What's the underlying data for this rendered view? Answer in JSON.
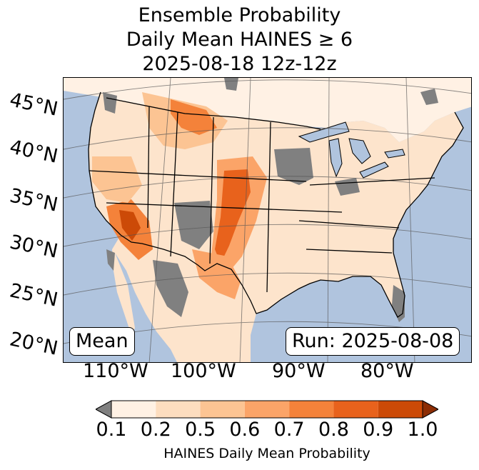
{
  "title": {
    "line1": "Ensemble Probability",
    "line2": "Daily Mean HAINES ≥ 6",
    "line3": "2025-08-18 12z-12z"
  },
  "latitude_labels": [
    "45°N",
    "40°N",
    "35°N",
    "30°N",
    "25°N",
    "20°N"
  ],
  "longitude_labels": [
    "110°W",
    "100°W",
    "90°W",
    "80°W"
  ],
  "badges": {
    "left": "Mean",
    "right": "Run: 2025-08-08"
  },
  "colorbar": {
    "ticks": [
      "0.1",
      "0.2",
      "0.5",
      "0.6",
      "0.7",
      "0.8",
      "0.9",
      "1.0"
    ],
    "label": "HAINES Daily Mean Probability",
    "colors": [
      "#fff1e4",
      "#fdddbf",
      "#fcc493",
      "#fba468",
      "#f4823a",
      "#e8621c",
      "#cc4a07"
    ],
    "under_color": "#808080",
    "over_color": "#8c2d04"
  },
  "colors": {
    "ocean": "#b0c4de",
    "land_base": "#fff1e4",
    "no_data": "#808080",
    "lake": "#b0c4de"
  }
}
